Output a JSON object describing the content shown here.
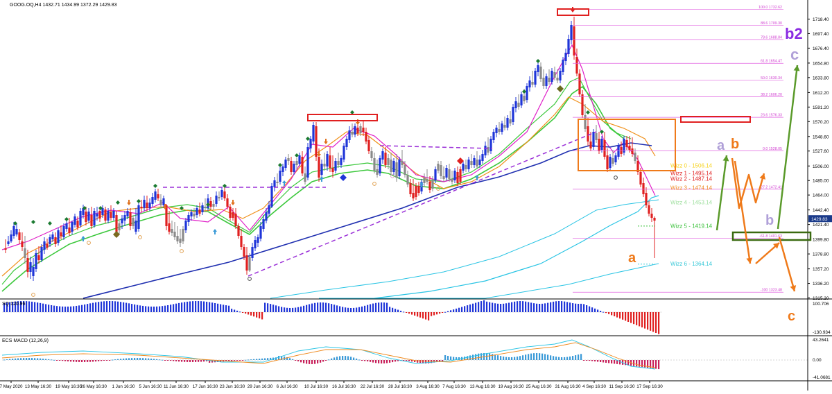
{
  "header": {
    "symbol_line": "GOOG.OQ,H4  1432.71 1434.99 1372.29 1429.83",
    "osc_label": "SQ 120.96",
    "macd_label": "ECS MACD (12,26,9)"
  },
  "chart_data": {
    "type": "candlestick",
    "title": "",
    "symbol": "GOOG.OQ",
    "timeframe": "H4",
    "ohlc_last": {
      "open": 1432.71,
      "high": 1434.99,
      "low": 1372.29,
      "close": 1429.83
    },
    "ylim": [
      1308,
      1746
    ],
    "x_ticks": [
      "7 May 2020",
      "13 May 16:30",
      "19 May 16:30",
      "26 May 16:30",
      "1 Jun 16:30",
      "5 Jun 16:30",
      "11 Jun 16:30",
      "17 Jun 16:30",
      "23 Jun 16:30",
      "29 Jun 16:30",
      "6 Jul 16:30",
      "10 Jul 16:30",
      "16 Jul 16:30",
      "22 Jul 16:30",
      "28 Jul 16:30",
      "3 Aug 16:30",
      "7 Aug 16:30",
      "13 Aug 16:30",
      "19 Aug 16:30",
      "25 Aug 16:30",
      "31 Aug 16:30",
      "4 Sep 16:30",
      "11 Sep 16:30",
      "17 Sep 16:30"
    ],
    "y_ticks": [
      "1718.40",
      "1697.40",
      "1676.40",
      "1654.80",
      "1633.80",
      "1612.20",
      "1591.20",
      "1570.20",
      "1548.60",
      "1527.60",
      "1506.00",
      "1485.00",
      "1464.00",
      "1442.40",
      "1421.40",
      "1399.80",
      "1378.80",
      "1357.20",
      "1336.20",
      "1315.20"
    ],
    "price_label": "1429.83",
    "fib_levels": [
      {
        "price": 1732.62,
        "label": "100.0  1732.62"
      },
      {
        "price": 1709.3,
        "label": "88.6  1709.30"
      },
      {
        "price": 1688.84,
        "label": "78.6  1688.84"
      },
      {
        "price": 1654.47,
        "label": "61.8  1654.47"
      },
      {
        "price": 1630.34,
        "label": "50.0  1630.34"
      },
      {
        "price": 1606.2,
        "label": "38.2  1606.20"
      },
      {
        "price": 1576.33,
        "label": "23.6  1576.33"
      },
      {
        "price": 1528.05,
        "label": "0.0  1528.05"
      },
      {
        "price": 1472.41,
        "label": "-27.2  1472.41"
      },
      {
        "price": 1401.63,
        "label": "-61.8  1401.63"
      },
      {
        "price": 1323.48,
        "label": "-100  1323.48"
      }
    ],
    "wizz_levels": [
      {
        "label": "Wizz 0 - 1506.14",
        "price": 1506.14,
        "color": "#f6d21b"
      },
      {
        "label": "Wizz 1 - 1495.14",
        "price": 1495.14,
        "color": "#e02020"
      },
      {
        "label": "Wizz 2 - 1487.14",
        "price": 1487.14,
        "color": "#e02020"
      },
      {
        "label": "Wizz 3 - 1474.14",
        "price": 1474.14,
        "color": "#ef8a1f"
      },
      {
        "label": "Wizz 4 - 1453.14",
        "price": 1453.14,
        "color": "#9edf9e"
      },
      {
        "label": "Wizz 5 - 1419.14",
        "price": 1419.14,
        "color": "#38c038"
      },
      {
        "label": "Wizz 6 - 1364.14",
        "price": 1364.14,
        "color": "#38c8d8"
      }
    ],
    "wave_labels": [
      {
        "text": "b2",
        "color": "#8a2be2"
      },
      {
        "text": "c",
        "color": "#b0a0d8"
      },
      {
        "text": "a",
        "color": "#b0a0d8"
      },
      {
        "text": "b",
        "color": "#ef7a1a"
      },
      {
        "text": "b",
        "color": "#b0a0d8"
      },
      {
        "text": "a",
        "color": "#ef7a1a"
      },
      {
        "text": "c",
        "color": "#ef7a1a"
      }
    ],
    "oscillator": {
      "ticks": [
        "100.706",
        "-130.934"
      ]
    },
    "macd": {
      "ticks": [
        "43.2641",
        "0.00",
        "-41.0681"
      ]
    },
    "colors": {
      "bull": "#1f35d8",
      "bear": "#e02020",
      "neutral": "#8a8a8a",
      "ema_green": "#3cc83c",
      "ema_orange": "#f0901a",
      "ema_magenta": "#e020c8",
      "ema_blue": "#1f2fb0",
      "ema_cyan": "#28c4e4",
      "trend": "#9b30d8"
    }
  }
}
